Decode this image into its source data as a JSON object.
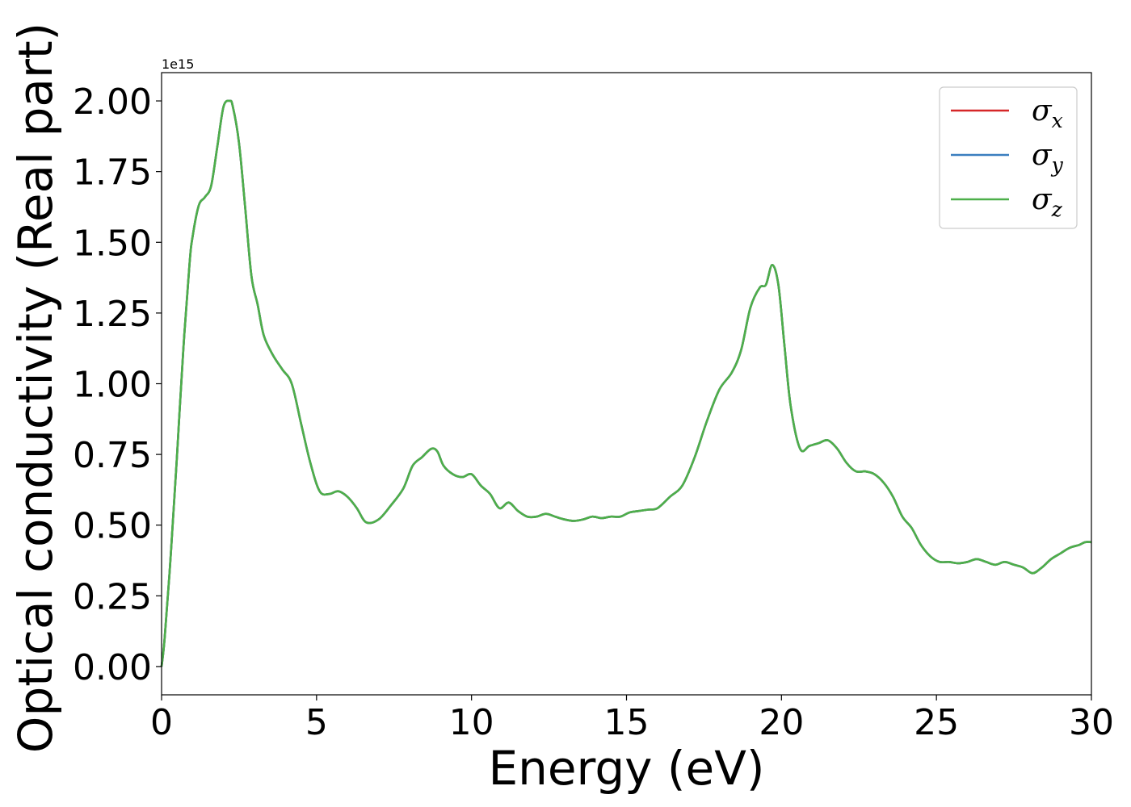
{
  "chart_data": {
    "type": "line",
    "title": "",
    "xlabel": "Energy (eV)",
    "ylabel": "Optical conductivity (Real part)",
    "y_offset_label": "1e15",
    "xlim": [
      0,
      30
    ],
    "ylim": [
      -0.1,
      2.1
    ],
    "xticks": [
      0,
      5,
      10,
      15,
      20,
      25,
      30
    ],
    "xtick_labels": [
      "0",
      "5",
      "10",
      "15",
      "20",
      "25",
      "30"
    ],
    "yticks": [
      0.0,
      0.25,
      0.5,
      0.75,
      1.0,
      1.25,
      1.5,
      1.75,
      2.0
    ],
    "ytick_labels": [
      "0.00",
      "0.25",
      "0.50",
      "0.75",
      "1.00",
      "1.25",
      "1.50",
      "1.75",
      "2.00"
    ],
    "grid": false,
    "legend_position": "top-right",
    "x": [
      0.0,
      0.1,
      0.3,
      0.5,
      0.7,
      0.9,
      1.0,
      1.2,
      1.4,
      1.6,
      1.8,
      2.0,
      2.2,
      2.3,
      2.5,
      2.7,
      2.9,
      3.1,
      3.3,
      3.6,
      3.9,
      4.2,
      4.5,
      4.8,
      5.1,
      5.4,
      5.7,
      6.0,
      6.3,
      6.6,
      7.0,
      7.4,
      7.8,
      8.1,
      8.4,
      8.7,
      8.9,
      9.1,
      9.4,
      9.7,
      10.0,
      10.3,
      10.6,
      10.9,
      11.2,
      11.5,
      11.8,
      12.1,
      12.4,
      12.7,
      13.0,
      13.3,
      13.6,
      13.9,
      14.2,
      14.5,
      14.8,
      15.1,
      15.4,
      15.7,
      16.0,
      16.4,
      16.8,
      17.2,
      17.6,
      18.0,
      18.4,
      18.7,
      19.0,
      19.3,
      19.5,
      19.7,
      19.9,
      20.1,
      20.3,
      20.6,
      20.9,
      21.2,
      21.5,
      21.8,
      22.1,
      22.4,
      22.7,
      23.0,
      23.3,
      23.6,
      23.9,
      24.2,
      24.5,
      24.8,
      25.1,
      25.4,
      25.7,
      26.0,
      26.3,
      26.6,
      26.9,
      27.2,
      27.5,
      27.8,
      28.1,
      28.4,
      28.7,
      29.0,
      29.3,
      29.6,
      29.8,
      30.0
    ],
    "series": [
      {
        "name": "σx",
        "label_base": "σ",
        "label_sub": "x",
        "color": "#d62728",
        "values": [
          0.0,
          0.1,
          0.4,
          0.75,
          1.12,
          1.42,
          1.52,
          1.63,
          1.66,
          1.7,
          1.84,
          1.98,
          2.0,
          1.98,
          1.85,
          1.62,
          1.38,
          1.28,
          1.17,
          1.1,
          1.05,
          1.0,
          0.86,
          0.72,
          0.62,
          0.61,
          0.62,
          0.6,
          0.56,
          0.51,
          0.52,
          0.57,
          0.63,
          0.71,
          0.74,
          0.77,
          0.76,
          0.71,
          0.68,
          0.67,
          0.68,
          0.64,
          0.61,
          0.56,
          0.58,
          0.55,
          0.53,
          0.53,
          0.54,
          0.53,
          0.52,
          0.515,
          0.52,
          0.53,
          0.525,
          0.53,
          0.53,
          0.545,
          0.55,
          0.555,
          0.56,
          0.6,
          0.64,
          0.74,
          0.87,
          0.98,
          1.04,
          1.12,
          1.27,
          1.34,
          1.35,
          1.42,
          1.35,
          1.13,
          0.92,
          0.77,
          0.78,
          0.79,
          0.8,
          0.77,
          0.72,
          0.69,
          0.69,
          0.68,
          0.65,
          0.6,
          0.53,
          0.49,
          0.43,
          0.39,
          0.37,
          0.37,
          0.365,
          0.37,
          0.38,
          0.37,
          0.36,
          0.37,
          0.36,
          0.35,
          0.33,
          0.35,
          0.38,
          0.4,
          0.42,
          0.43,
          0.44,
          0.44
        ]
      },
      {
        "name": "σy",
        "label_base": "σ",
        "label_sub": "y",
        "color": "#3a7ebf",
        "values": [
          0.0,
          0.1,
          0.4,
          0.75,
          1.12,
          1.42,
          1.52,
          1.63,
          1.66,
          1.7,
          1.84,
          1.98,
          2.0,
          1.98,
          1.85,
          1.62,
          1.38,
          1.28,
          1.17,
          1.1,
          1.05,
          1.0,
          0.86,
          0.72,
          0.62,
          0.61,
          0.62,
          0.6,
          0.56,
          0.51,
          0.52,
          0.57,
          0.63,
          0.71,
          0.74,
          0.77,
          0.76,
          0.71,
          0.68,
          0.67,
          0.68,
          0.64,
          0.61,
          0.56,
          0.58,
          0.55,
          0.53,
          0.53,
          0.54,
          0.53,
          0.52,
          0.515,
          0.52,
          0.53,
          0.525,
          0.53,
          0.53,
          0.545,
          0.55,
          0.555,
          0.56,
          0.6,
          0.64,
          0.74,
          0.87,
          0.98,
          1.04,
          1.12,
          1.27,
          1.34,
          1.35,
          1.42,
          1.35,
          1.13,
          0.92,
          0.77,
          0.78,
          0.79,
          0.8,
          0.77,
          0.72,
          0.69,
          0.69,
          0.68,
          0.65,
          0.6,
          0.53,
          0.49,
          0.43,
          0.39,
          0.37,
          0.37,
          0.365,
          0.37,
          0.38,
          0.37,
          0.36,
          0.37,
          0.36,
          0.35,
          0.33,
          0.35,
          0.38,
          0.4,
          0.42,
          0.43,
          0.44,
          0.44
        ]
      },
      {
        "name": "σz",
        "label_base": "σ",
        "label_sub": "z",
        "color": "#4daf4a",
        "values": [
          0.0,
          0.1,
          0.4,
          0.75,
          1.12,
          1.42,
          1.52,
          1.63,
          1.66,
          1.7,
          1.84,
          1.98,
          2.0,
          1.98,
          1.85,
          1.62,
          1.38,
          1.28,
          1.17,
          1.1,
          1.05,
          1.0,
          0.86,
          0.72,
          0.62,
          0.61,
          0.62,
          0.6,
          0.56,
          0.51,
          0.52,
          0.57,
          0.63,
          0.71,
          0.74,
          0.77,
          0.76,
          0.71,
          0.68,
          0.67,
          0.68,
          0.64,
          0.61,
          0.56,
          0.58,
          0.55,
          0.53,
          0.53,
          0.54,
          0.53,
          0.52,
          0.515,
          0.52,
          0.53,
          0.525,
          0.53,
          0.53,
          0.545,
          0.55,
          0.555,
          0.56,
          0.6,
          0.64,
          0.74,
          0.87,
          0.98,
          1.04,
          1.12,
          1.27,
          1.34,
          1.35,
          1.42,
          1.35,
          1.13,
          0.92,
          0.77,
          0.78,
          0.79,
          0.8,
          0.77,
          0.72,
          0.69,
          0.69,
          0.68,
          0.65,
          0.6,
          0.53,
          0.49,
          0.43,
          0.39,
          0.37,
          0.37,
          0.365,
          0.37,
          0.38,
          0.37,
          0.36,
          0.37,
          0.36,
          0.35,
          0.33,
          0.35,
          0.38,
          0.4,
          0.42,
          0.43,
          0.44,
          0.44
        ]
      }
    ]
  }
}
